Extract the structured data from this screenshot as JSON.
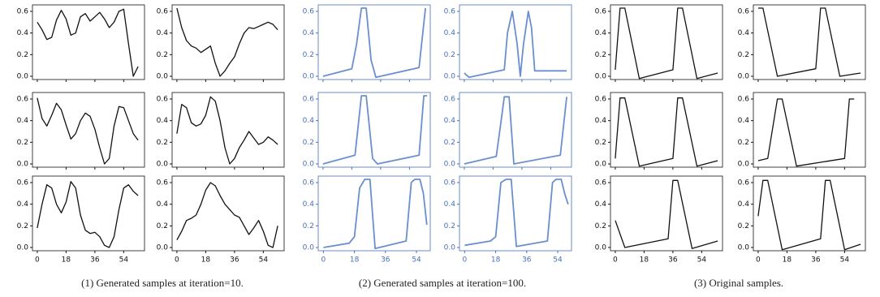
{
  "captions": [
    "(1) Generated samples at iteration=10.",
    "(2) Generated samples at iteration=100.",
    "(3) Original  samples."
  ],
  "chart_data": [
    {
      "type": "line",
      "color": "#111111",
      "axis_color": "#111111",
      "xtick_labels": false,
      "xlim": [
        -3,
        67
      ],
      "ylim": [
        -0.03,
        0.66
      ],
      "xticks": [
        0,
        18,
        36,
        54
      ],
      "yticks": [
        {
          "value": 0,
          "label": "0.0"
        },
        0.2,
        0.4,
        0.6
      ],
      "x": [
        0,
        3,
        6,
        9,
        12,
        15,
        18,
        21,
        24,
        27,
        30,
        33,
        36,
        39,
        42,
        45,
        48,
        51,
        54,
        57,
        60,
        63
      ],
      "values": [
        0.5,
        0.43,
        0.34,
        0.36,
        0.52,
        0.61,
        0.53,
        0.38,
        0.4,
        0.55,
        0.58,
        0.51,
        0.55,
        0.59,
        0.53,
        0.45,
        0.5,
        0.6,
        0.62,
        0.3,
        0.0,
        0.09
      ]
    },
    {
      "type": "line",
      "color": "#111111",
      "axis_color": "#111111",
      "xtick_labels": false,
      "xlim": [
        -3,
        67
      ],
      "ylim": [
        -0.03,
        0.66
      ],
      "xticks": [
        0,
        18,
        36,
        54
      ],
      "yticks": [
        {
          "value": 0,
          "label": "0.0"
        },
        0.2,
        0.4,
        0.6
      ],
      "x": [
        0,
        3,
        6,
        9,
        12,
        15,
        18,
        21,
        24,
        27,
        30,
        33,
        36,
        39,
        42,
        45,
        48,
        51,
        54,
        57,
        60,
        63
      ],
      "values": [
        0.63,
        0.45,
        0.33,
        0.28,
        0.26,
        0.22,
        0.25,
        0.28,
        0.12,
        0.0,
        0.05,
        0.12,
        0.18,
        0.3,
        0.4,
        0.45,
        0.44,
        0.46,
        0.48,
        0.5,
        0.48,
        0.43
      ]
    },
    {
      "type": "line",
      "color": "#111111",
      "axis_color": "#111111",
      "xtick_labels": false,
      "xlim": [
        -3,
        67
      ],
      "ylim": [
        -0.03,
        0.66
      ],
      "xticks": [
        0,
        18,
        36,
        54
      ],
      "yticks": [
        {
          "value": 0,
          "label": "0.0"
        },
        0.2,
        0.4,
        0.6
      ],
      "x": [
        0,
        3,
        6,
        9,
        12,
        15,
        18,
        21,
        24,
        27,
        30,
        33,
        36,
        39,
        42,
        45,
        48,
        51,
        54,
        57,
        60,
        63
      ],
      "values": [
        0.61,
        0.42,
        0.35,
        0.45,
        0.56,
        0.5,
        0.36,
        0.23,
        0.28,
        0.4,
        0.47,
        0.44,
        0.32,
        0.15,
        0.0,
        0.05,
        0.35,
        0.53,
        0.52,
        0.4,
        0.28,
        0.22
      ]
    },
    {
      "type": "line",
      "color": "#111111",
      "axis_color": "#111111",
      "xtick_labels": false,
      "xlim": [
        -3,
        67
      ],
      "ylim": [
        -0.03,
        0.66
      ],
      "xticks": [
        0,
        18,
        36,
        54
      ],
      "yticks": [
        {
          "value": 0,
          "label": "0.0"
        },
        0.2,
        0.4,
        0.6
      ],
      "x": [
        0,
        3,
        6,
        9,
        12,
        15,
        18,
        21,
        24,
        27,
        30,
        33,
        36,
        39,
        42,
        45,
        48,
        51,
        54,
        57,
        60,
        63
      ],
      "values": [
        0.28,
        0.55,
        0.52,
        0.38,
        0.35,
        0.37,
        0.45,
        0.62,
        0.58,
        0.4,
        0.15,
        0.0,
        0.05,
        0.15,
        0.22,
        0.3,
        0.24,
        0.18,
        0.2,
        0.25,
        0.22,
        0.18
      ]
    },
    {
      "type": "line",
      "color": "#111111",
      "axis_color": "#111111",
      "xtick_labels": true,
      "xlim": [
        -3,
        67
      ],
      "ylim": [
        -0.03,
        0.66
      ],
      "xticks": [
        0,
        18,
        36,
        54
      ],
      "yticks": [
        {
          "value": 0,
          "label": "0.0"
        },
        0.2,
        0.4,
        0.6
      ],
      "x": [
        0,
        3,
        6,
        9,
        12,
        15,
        18,
        21,
        24,
        27,
        30,
        33,
        36,
        39,
        42,
        45,
        48,
        51,
        54,
        57,
        60,
        63
      ],
      "values": [
        0.18,
        0.4,
        0.58,
        0.55,
        0.4,
        0.32,
        0.42,
        0.61,
        0.55,
        0.3,
        0.16,
        0.13,
        0.14,
        0.1,
        0.02,
        0.0,
        0.1,
        0.35,
        0.55,
        0.58,
        0.52,
        0.48
      ]
    },
    {
      "type": "line",
      "color": "#111111",
      "axis_color": "#111111",
      "xtick_labels": true,
      "xlim": [
        -3,
        67
      ],
      "ylim": [
        -0.03,
        0.66
      ],
      "xticks": [
        0,
        18,
        36,
        54
      ],
      "yticks": [
        {
          "value": 0,
          "label": "0.0"
        },
        0.2,
        0.4,
        0.6
      ],
      "x": [
        0,
        3,
        6,
        9,
        12,
        15,
        18,
        21,
        24,
        27,
        30,
        33,
        36,
        39,
        42,
        45,
        48,
        51,
        54,
        57,
        60,
        63
      ],
      "values": [
        0.07,
        0.15,
        0.25,
        0.27,
        0.3,
        0.4,
        0.53,
        0.6,
        0.57,
        0.48,
        0.4,
        0.35,
        0.3,
        0.28,
        0.2,
        0.12,
        0.18,
        0.25,
        0.15,
        0.02,
        0.0,
        0.2
      ]
    },
    {
      "type": "line",
      "color": "#6a8fcf",
      "axis_color": "#4a6fb5",
      "xtick_labels": false,
      "xlim": [
        -3,
        67
      ],
      "ylim": [
        -0.03,
        0.66
      ],
      "xticks": [
        0,
        18,
        36,
        54
      ],
      "yticks": [
        {
          "value": 0,
          "label": "0.0"
        },
        0.2,
        0.4,
        0.6
      ],
      "x": [
        0,
        18,
        21,
        24,
        27,
        30,
        33,
        60,
        64
      ],
      "values": [
        0.0,
        0.07,
        0.3,
        0.63,
        0.63,
        0.15,
        -0.01,
        0.08,
        0.63
      ]
    },
    {
      "type": "line",
      "color": "#6a8fcf",
      "axis_color": "#4a6fb5",
      "xtick_labels": false,
      "xlim": [
        -3,
        67
      ],
      "ylim": [
        -0.03,
        0.66
      ],
      "xticks": [
        0,
        18,
        36,
        54
      ],
      "yticks": [
        {
          "value": 0,
          "label": "0.0"
        },
        0.2,
        0.4,
        0.6
      ],
      "x": [
        0,
        3,
        25,
        27,
        30,
        33,
        35,
        37,
        40,
        42,
        44,
        64
      ],
      "values": [
        0.03,
        -0.01,
        0.06,
        0.4,
        0.6,
        0.3,
        0.0,
        0.3,
        0.6,
        0.45,
        0.05,
        0.05
      ]
    },
    {
      "type": "line",
      "color": "#6a8fcf",
      "axis_color": "#4a6fb5",
      "xtick_labels": false,
      "xlim": [
        -3,
        67
      ],
      "ylim": [
        -0.03,
        0.66
      ],
      "xticks": [
        0,
        18,
        36,
        54
      ],
      "yticks": [
        {
          "value": 0,
          "label": "0.0"
        },
        0.2,
        0.4,
        0.6
      ],
      "x": [
        0,
        20,
        24,
        27,
        31,
        34,
        60,
        63,
        65
      ],
      "values": [
        0.0,
        0.08,
        0.63,
        0.63,
        0.05,
        0.0,
        0.08,
        0.63,
        0.63
      ]
    },
    {
      "type": "line",
      "color": "#6a8fcf",
      "axis_color": "#4a6fb5",
      "xtick_labels": false,
      "xlim": [
        -3,
        67
      ],
      "ylim": [
        -0.03,
        0.66
      ],
      "xticks": [
        0,
        18,
        36,
        54
      ],
      "yticks": [
        {
          "value": 0,
          "label": "0.0"
        },
        0.2,
        0.4,
        0.6
      ],
      "x": [
        0,
        20,
        23,
        25,
        28,
        31,
        60,
        64
      ],
      "values": [
        0.0,
        0.07,
        0.4,
        0.62,
        0.62,
        0.0,
        0.08,
        0.62
      ]
    },
    {
      "type": "line",
      "color": "#6a8fcf",
      "axis_color": "#4a6fb5",
      "xtick_labels": true,
      "xlim": [
        -3,
        62
      ],
      "ylim": [
        -0.03,
        0.66
      ],
      "xticks": [
        0,
        18,
        36,
        54
      ],
      "yticks": [
        {
          "value": 0,
          "label": "0.0"
        },
        0.2,
        0.4,
        0.6
      ],
      "x": [
        0,
        15,
        18,
        21,
        24,
        27,
        30,
        48,
        51,
        53,
        56,
        58,
        60
      ],
      "values": [
        0.0,
        0.04,
        0.1,
        0.55,
        0.63,
        0.63,
        -0.01,
        0.06,
        0.6,
        0.63,
        0.63,
        0.5,
        0.21
      ]
    },
    {
      "type": "line",
      "color": "#6a8fcf",
      "axis_color": "#4a6fb5",
      "xtick_labels": true,
      "xlim": [
        -3,
        62
      ],
      "ylim": [
        -0.03,
        0.66
      ],
      "xticks": [
        0,
        18,
        36,
        54
      ],
      "yticks": [
        {
          "value": 0,
          "label": "0.0"
        },
        0.2,
        0.4,
        0.6
      ],
      "x": [
        0,
        15,
        18,
        21,
        24,
        27,
        30,
        48,
        51,
        53,
        56,
        58,
        60
      ],
      "values": [
        0.02,
        0.06,
        0.1,
        0.6,
        0.63,
        0.63,
        0.01,
        0.06,
        0.6,
        0.63,
        0.63,
        0.5,
        0.4
      ]
    },
    {
      "type": "line",
      "color": "#111111",
      "axis_color": "#111111",
      "xtick_labels": false,
      "xlim": [
        -3,
        67
      ],
      "ylim": [
        -0.03,
        0.66
      ],
      "xticks": [
        0,
        18,
        36,
        54
      ],
      "yticks": [
        {
          "value": 0,
          "label": "0.0"
        },
        0.2,
        0.4,
        0.6
      ],
      "x": [
        0,
        3,
        6,
        15,
        36,
        39,
        42,
        51,
        64
      ],
      "values": [
        0.06,
        0.63,
        0.63,
        -0.02,
        0.06,
        0.63,
        0.63,
        -0.02,
        0.03
      ]
    },
    {
      "type": "line",
      "color": "#111111",
      "axis_color": "#111111",
      "xtick_labels": false,
      "xlim": [
        -3,
        67
      ],
      "ylim": [
        -0.03,
        0.66
      ],
      "xticks": [
        0,
        18,
        36,
        54
      ],
      "yticks": [
        {
          "value": 0,
          "label": "0.0"
        },
        0.2,
        0.4,
        0.6
      ],
      "x": [
        0,
        3,
        12,
        36,
        39,
        42,
        51,
        64
      ],
      "values": [
        0.63,
        0.63,
        0.0,
        0.07,
        0.63,
        0.63,
        0.0,
        0.03
      ]
    },
    {
      "type": "line",
      "color": "#111111",
      "axis_color": "#111111",
      "xtick_labels": false,
      "xlim": [
        -3,
        67
      ],
      "ylim": [
        -0.03,
        0.66
      ],
      "xticks": [
        0,
        18,
        36,
        54
      ],
      "yticks": [
        {
          "value": 0,
          "label": "0.0"
        },
        0.2,
        0.4,
        0.6
      ],
      "x": [
        0,
        3,
        6,
        15,
        36,
        39,
        42,
        51,
        64
      ],
      "values": [
        0.05,
        0.61,
        0.61,
        -0.02,
        0.05,
        0.61,
        0.61,
        -0.02,
        0.03
      ]
    },
    {
      "type": "line",
      "color": "#111111",
      "axis_color": "#111111",
      "xtick_labels": false,
      "xlim": [
        -3,
        67
      ],
      "ylim": [
        -0.03,
        0.66
      ],
      "xticks": [
        0,
        18,
        36,
        54
      ],
      "yticks": [
        {
          "value": 0,
          "label": "0.0"
        },
        0.2,
        0.4,
        0.6
      ],
      "x": [
        0,
        6,
        12,
        15,
        24,
        54,
        57,
        60
      ],
      "values": [
        0.03,
        0.05,
        0.6,
        0.6,
        -0.02,
        0.05,
        0.6,
        0.6
      ]
    },
    {
      "type": "line",
      "color": "#111111",
      "axis_color": "#111111",
      "xtick_labels": true,
      "xlim": [
        -3,
        67
      ],
      "ylim": [
        -0.03,
        0.66
      ],
      "xticks": [
        0,
        18,
        36,
        54
      ],
      "yticks": [
        {
          "value": 0,
          "label": "0.0"
        },
        0.2,
        0.4,
        0.6
      ],
      "x": [
        0,
        6,
        33,
        36,
        39,
        48,
        64
      ],
      "values": [
        0.25,
        0.0,
        0.08,
        0.62,
        0.62,
        -0.01,
        0.06
      ]
    },
    {
      "type": "line",
      "color": "#111111",
      "axis_color": "#111111",
      "xtick_labels": true,
      "xlim": [
        -3,
        67
      ],
      "ylim": [
        -0.03,
        0.66
      ],
      "xticks": [
        0,
        18,
        36,
        54
      ],
      "yticks": [
        {
          "value": 0,
          "label": "0.0"
        },
        0.2,
        0.4,
        0.6
      ],
      "x": [
        0,
        3,
        6,
        15,
        39,
        42,
        45,
        54,
        64
      ],
      "values": [
        0.29,
        0.62,
        0.62,
        -0.02,
        0.08,
        0.62,
        0.62,
        -0.02,
        0.03
      ]
    }
  ]
}
